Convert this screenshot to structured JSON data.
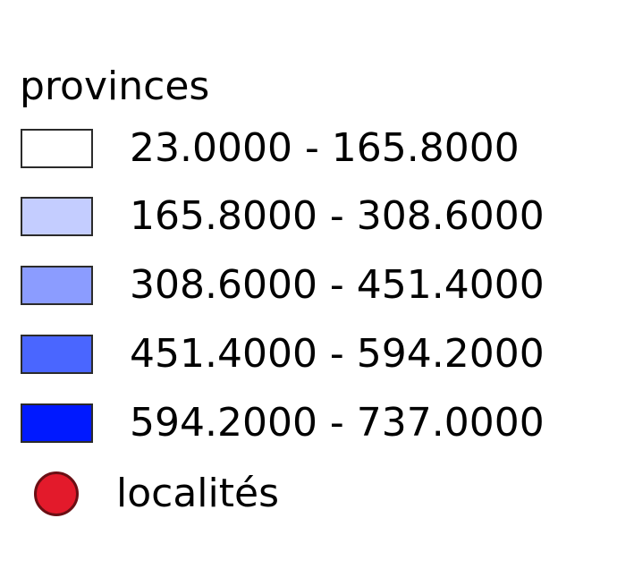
{
  "legend": {
    "title": "provinces",
    "classes": [
      {
        "label": "23.0000 - 165.8000",
        "color": "#ffffff"
      },
      {
        "label": "165.8000 - 308.6000",
        "color": "#c4cdff"
      },
      {
        "label": "308.6000 - 451.4000",
        "color": "#8b9cff"
      },
      {
        "label": "451.4000 - 594.2000",
        "color": "#4a66ff"
      },
      {
        "label": "594.2000 - 737.0000",
        "color": "#0019ff"
      }
    ],
    "point_layer": {
      "label": "localités",
      "color": "#e31a2b",
      "icon": "circle-icon"
    }
  }
}
